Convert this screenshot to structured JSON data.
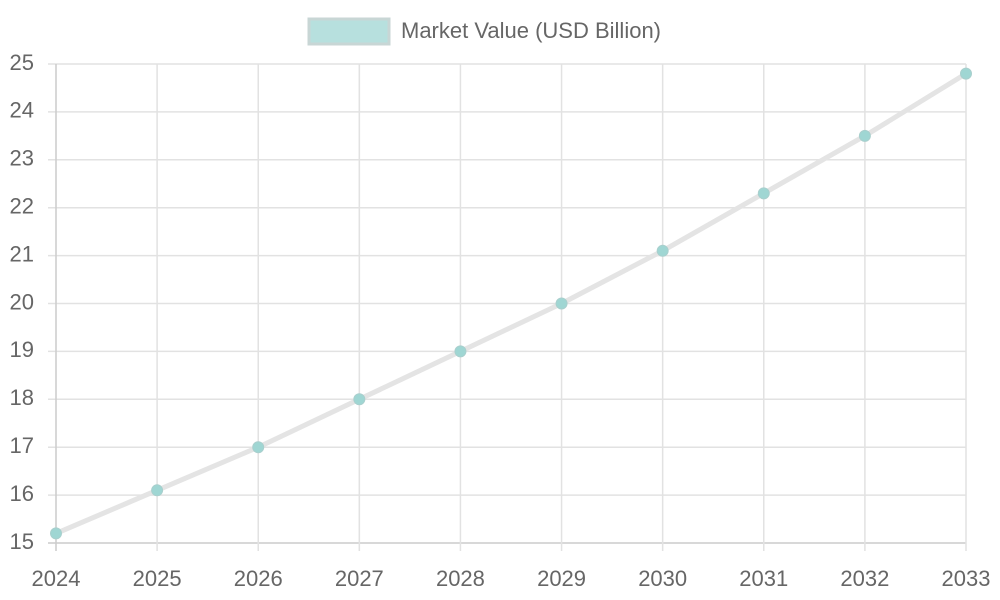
{
  "chart_data": {
    "type": "line",
    "categories": [
      "2024",
      "2025",
      "2026",
      "2027",
      "2028",
      "2029",
      "2030",
      "2031",
      "2032",
      "2033"
    ],
    "series": [
      {
        "name": "Market Value (USD Billion)",
        "color": "#9fd6d3",
        "line_color": "#e4e4e4",
        "values": [
          15.2,
          16.1,
          17.0,
          18.0,
          19.0,
          20.0,
          21.1,
          22.3,
          23.5,
          24.8
        ]
      }
    ],
    "ylim": [
      15,
      25
    ],
    "yticks": [
      15,
      16,
      17,
      18,
      19,
      20,
      21,
      22,
      23,
      24,
      25
    ],
    "grid": true,
    "legend": "top"
  }
}
